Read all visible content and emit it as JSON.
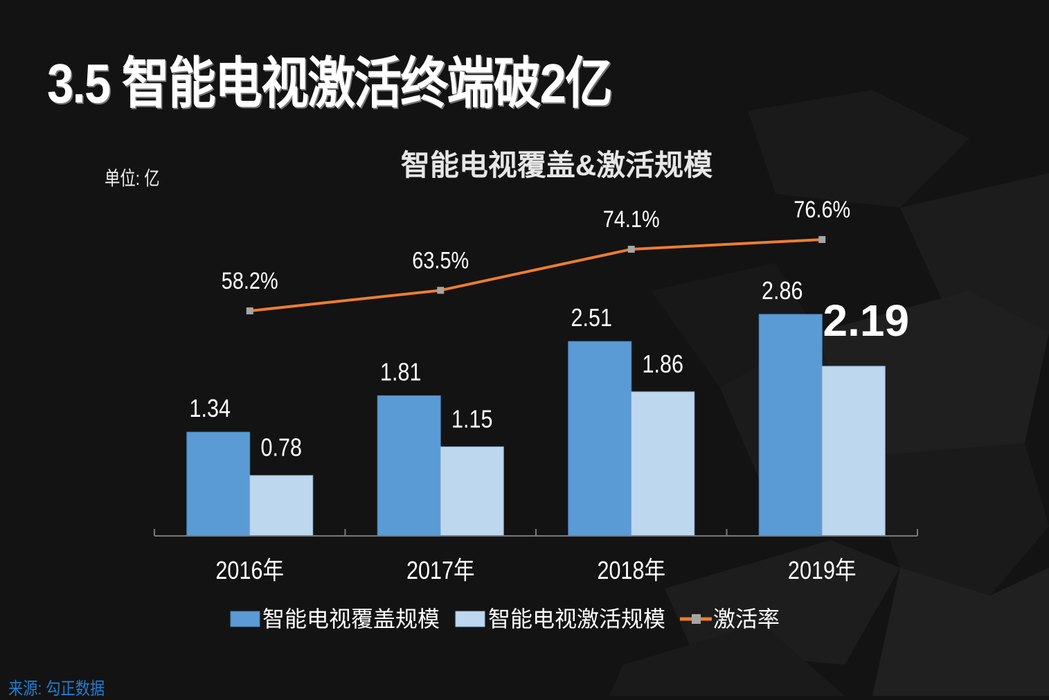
{
  "slide": {
    "title": "3.5 智能电视激活终端破2亿",
    "unit": "单位:  亿",
    "source": "来源:  勾正数据"
  },
  "colors": {
    "background": "#131313",
    "coverage": "#5b9bd5",
    "activation": "#bdd7ee",
    "rate_line": "#ed7d31",
    "rate_marker": "#a5a5a5",
    "source_text": "#1f7fd0"
  },
  "chart_data": {
    "type": "bar",
    "title": "智能电视覆盖&激活规模",
    "xlabel": "",
    "ylabel": "单位: 亿",
    "categories": [
      "2016年",
      "2017年",
      "2018年",
      "2019年"
    ],
    "ylim": [
      0,
      3
    ],
    "grid": false,
    "legend_position": "bottom",
    "series": [
      {
        "name": "智能电视覆盖规模",
        "type": "bar",
        "values": [
          1.34,
          1.81,
          2.51,
          2.86
        ],
        "labels": [
          "1.34",
          "1.81",
          "2.51",
          "2.86"
        ]
      },
      {
        "name": "智能电视激活规模",
        "type": "bar",
        "values": [
          0.78,
          1.15,
          1.86,
          2.19
        ],
        "labels": [
          "0.78",
          "1.15",
          "1.86",
          "2.19"
        ]
      },
      {
        "name": "激活率",
        "type": "line",
        "axis": "secondary",
        "values": [
          58.2,
          63.5,
          74.1,
          76.6
        ],
        "labels": [
          "58.2%",
          "63.5%",
          "74.1%",
          "76.6%"
        ]
      }
    ],
    "secondary_ylim": [
      0,
      100
    ],
    "highlighted_label": "2.19"
  }
}
